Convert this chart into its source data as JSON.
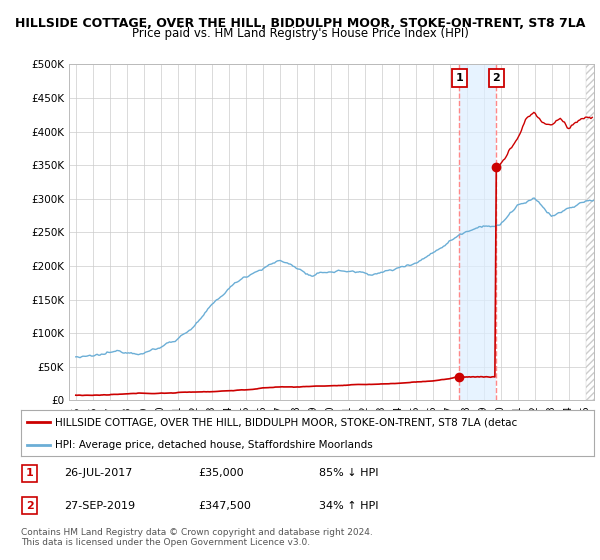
{
  "title": "HILLSIDE COTTAGE, OVER THE HILL, BIDDULPH MOOR, STOKE-ON-TRENT, ST8 7LA",
  "subtitle": "Price paid vs. HM Land Registry's House Price Index (HPI)",
  "title_fontsize": 9,
  "subtitle_fontsize": 8.5,
  "background_color": "#ffffff",
  "plot_bg_color": "#ffffff",
  "grid_color": "#cccccc",
  "ylim": [
    0,
    500000
  ],
  "yticks": [
    0,
    50000,
    100000,
    150000,
    200000,
    250000,
    300000,
    350000,
    400000,
    450000,
    500000
  ],
  "hpi_color": "#6baed6",
  "price_color": "#cc0000",
  "marker1_date": 2017.57,
  "marker1_price": 35000,
  "marker1_label": "1",
  "marker1_date_str": "26-JUL-2017",
  "marker1_price_str": "£35,000",
  "marker1_pct": "85% ↓ HPI",
  "marker2_date": 2019.75,
  "marker2_price": 347500,
  "marker2_label": "2",
  "marker2_date_str": "27-SEP-2019",
  "marker2_price_str": "£347,500",
  "marker2_pct": "34% ↑ HPI",
  "legend_line1": "HILLSIDE COTTAGE, OVER THE HILL, BIDDULPH MOOR, STOKE-ON-TRENT, ST8 7LA (detac",
  "legend_line2": "HPI: Average price, detached house, Staffordshire Moorlands",
  "footer": "Contains HM Land Registry data © Crown copyright and database right 2024.\nThis data is licensed under the Open Government Licence v3.0.",
  "dashed_line_color": "#ff8888",
  "shade_color": "#ddeeff",
  "hatch_color": "#cccccc",
  "xlim_left": 1994.6,
  "xlim_right": 2025.5
}
